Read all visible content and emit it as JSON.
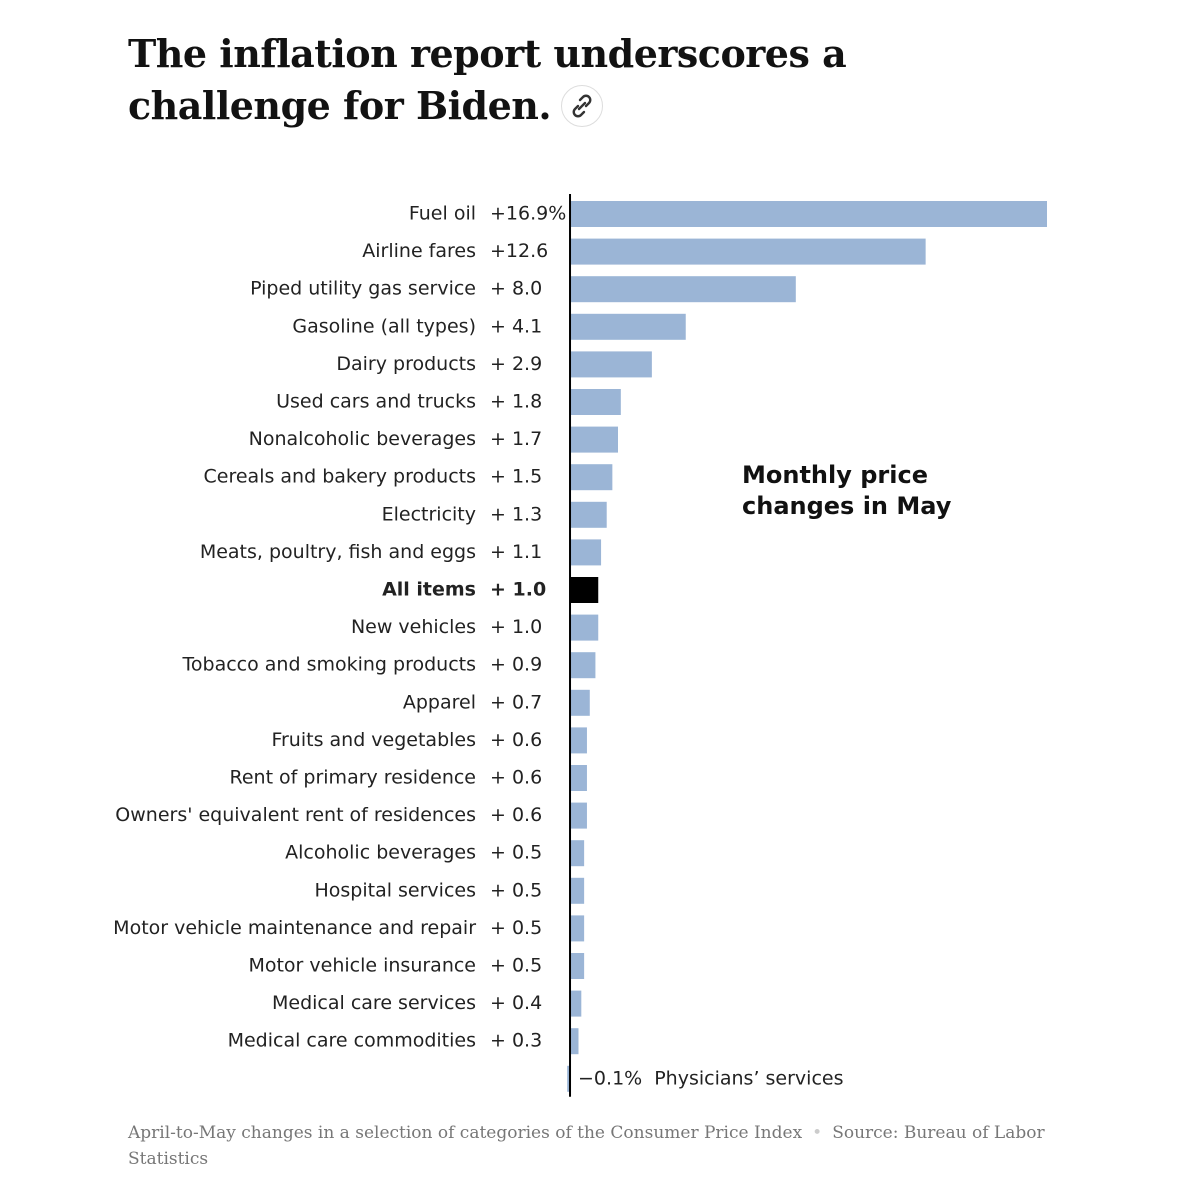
{
  "chart_data": {
    "type": "bar",
    "orientation": "horizontal",
    "title": "The inflation report underscores a challenge for Biden.",
    "annotation": [
      "Monthly price",
      "changes in May"
    ],
    "caption": "April-to-May changes in a selection of categories of the Consumer Price Index",
    "source": "Source: Bureau of Labor Statistics",
    "categories": [
      "Fuel oil",
      "Airline fares",
      "Piped utility gas service",
      "Gasoline (all types)",
      "Dairy products",
      "Used cars and trucks",
      "Nonalcoholic beverages",
      "Cereals and bakery products",
      "Electricity",
      "Meats, poultry, fish and eggs",
      "All items",
      "New vehicles",
      "Tobacco and smoking products",
      "Apparel",
      "Fruits and vegetables",
      "Rent of primary residence",
      "Owners' equivalent rent of residences",
      "Alcoholic beverages",
      "Hospital services",
      "Motor vehicle maintenance and repair",
      "Motor vehicle insurance",
      "Medical care services",
      "Medical care commodities",
      "Physicians’ services"
    ],
    "values": [
      16.9,
      12.6,
      8.0,
      4.1,
      2.9,
      1.8,
      1.7,
      1.5,
      1.3,
      1.1,
      1.0,
      1.0,
      0.9,
      0.7,
      0.6,
      0.6,
      0.6,
      0.5,
      0.5,
      0.5,
      0.5,
      0.4,
      0.3,
      -0.1
    ],
    "value_labels": [
      "+16.9%",
      "+12.6",
      "+ 8.0",
      "+ 4.1",
      "+ 2.9",
      "+ 1.8",
      "+ 1.7",
      "+ 1.5",
      "+ 1.3",
      "+ 1.1",
      "+ 1.0",
      "+ 1.0",
      "+ 0.9",
      "+ 0.7",
      "+ 0.6",
      "+ 0.6",
      "+ 0.6",
      "+ 0.5",
      "+ 0.5",
      "+ 0.5",
      "+ 0.5",
      "+ 0.4",
      "+ 0.3",
      "−0.1%"
    ],
    "colors": [
      "#9bb5d6",
      "#9bb5d6",
      "#9bb5d6",
      "#9bb5d6",
      "#9bb5d6",
      "#9bb5d6",
      "#9bb5d6",
      "#9bb5d6",
      "#9bb5d6",
      "#9bb5d6",
      "#000000",
      "#9bb5d6",
      "#9bb5d6",
      "#9bb5d6",
      "#9bb5d6",
      "#9bb5d6",
      "#9bb5d6",
      "#9bb5d6",
      "#9bb5d6",
      "#9bb5d6",
      "#9bb5d6",
      "#9bb5d6",
      "#9bb5d6",
      "#9bb5d6"
    ],
    "xlim": [
      -0.1,
      16.9
    ]
  }
}
